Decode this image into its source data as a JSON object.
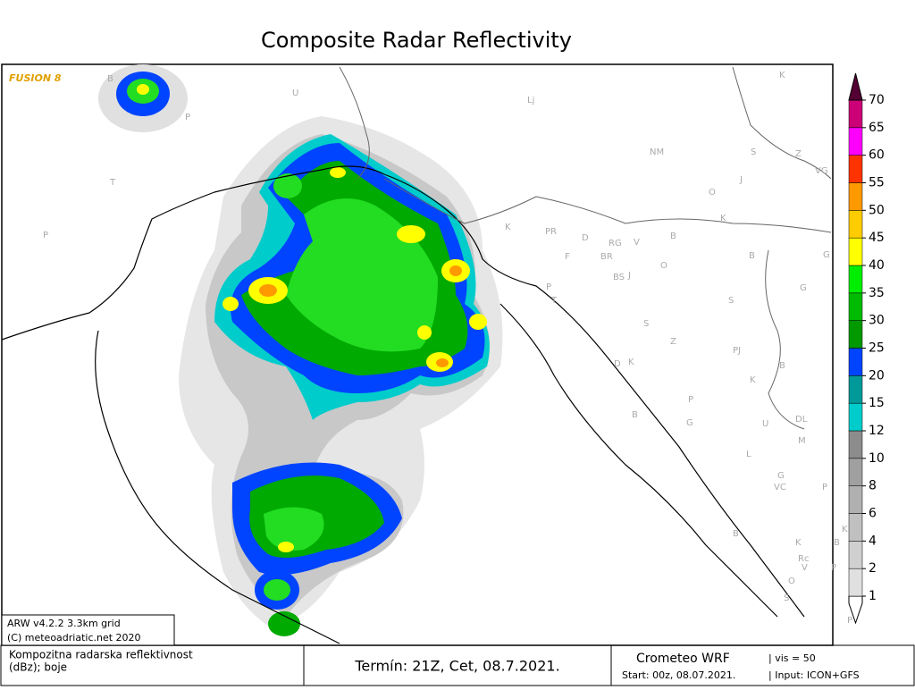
{
  "title": "Composite Radar Reflectivity",
  "brand": "FUSION 8",
  "places": [
    "U",
    "Lj",
    "B",
    "P",
    "T",
    "P",
    "NM",
    "K",
    "S",
    "Z",
    "VG",
    "J",
    "O",
    "K",
    "B",
    "PR",
    "D",
    "RG",
    "V",
    "F",
    "BR",
    "BS",
    "J",
    "O",
    "B",
    "K",
    "G",
    "G",
    "S",
    "T",
    "P",
    "K",
    "D",
    "PJ",
    "B",
    "Z",
    "K",
    "S",
    "P",
    "G",
    "U",
    "DL",
    "M",
    "L",
    "B",
    "B",
    "G",
    "VC",
    "P",
    "K",
    "B",
    "K",
    "Rc",
    "V",
    "P",
    "S",
    "O",
    "P"
  ],
  "colorbar": {
    "levels": [
      1,
      2,
      4,
      6,
      8,
      10,
      12,
      15,
      20,
      25,
      30,
      35,
      40,
      45,
      50,
      55,
      60,
      65,
      70
    ]
  },
  "footer": {
    "model": "ARW v4.2.2 3.3km grid",
    "copyright": "(C) meteoadriatic.net 2020",
    "description": [
      "Kompozitna radarska reflektivnost",
      "(dBz); boje"
    ],
    "termin": "Termín: 21Z, Cet, 08.7.2021.",
    "producer": "Crometeo WRF",
    "vis": "| vis = 50",
    "start": "Start: 00z, 08.07.2021.",
    "input": "| Input: ICON+GFS"
  }
}
